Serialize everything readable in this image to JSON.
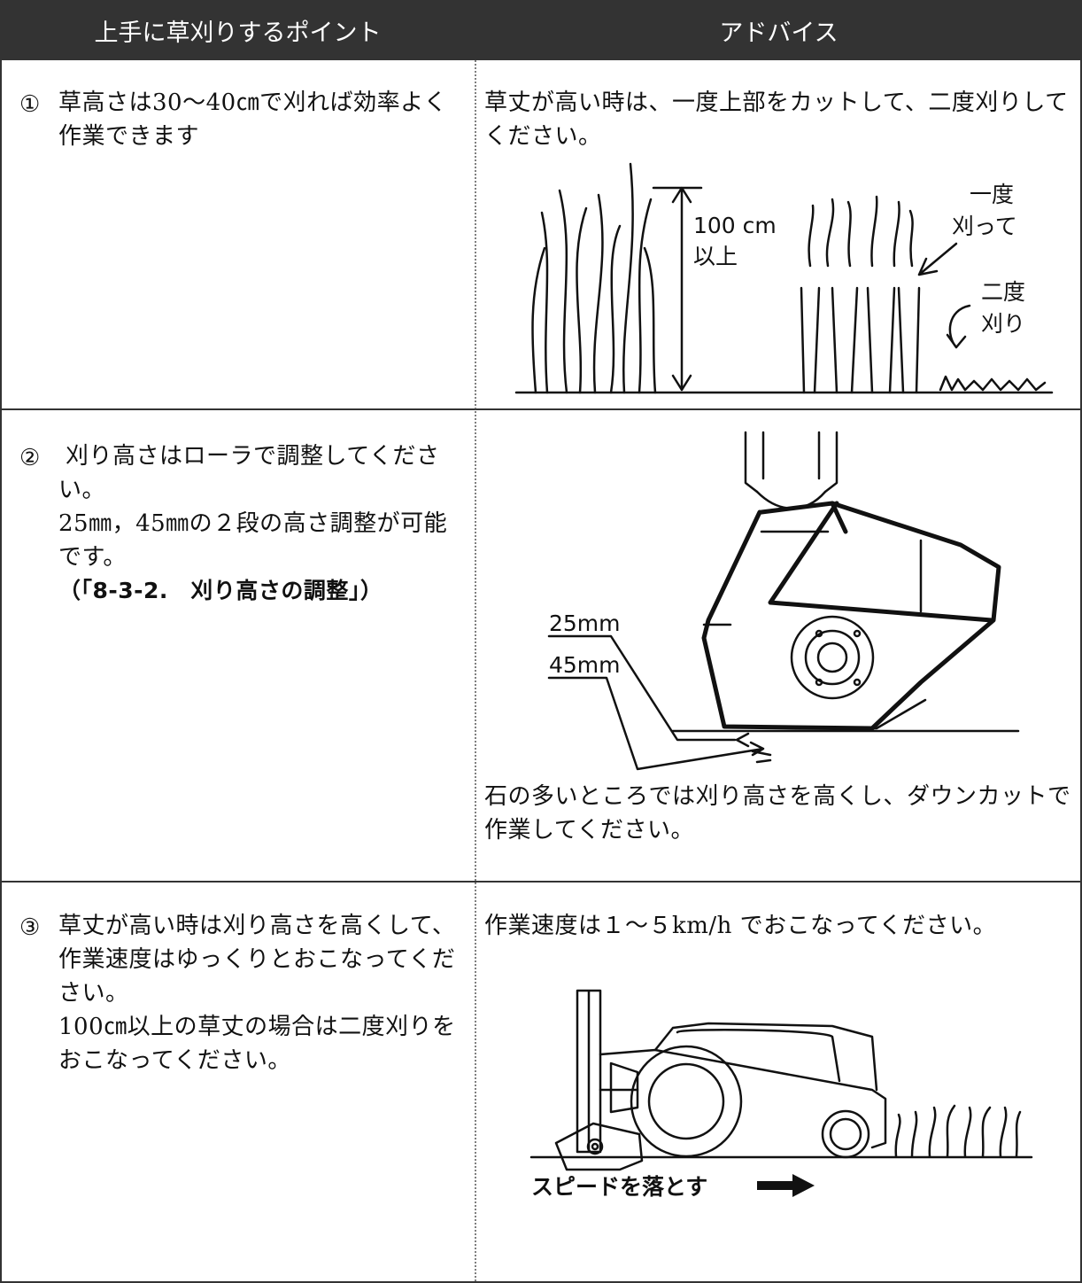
{
  "table": {
    "header": [
      "上手に草刈りするポイント",
      "アドバイス"
    ],
    "rows": [
      {
        "number": "①",
        "point": [
          "草高さは30〜40㎝で刈れば効率よく作業できます"
        ],
        "advice_top": "草丈が高い時は、一度上部をカットして、二度刈りしてください。",
        "figure_labels": [
          "100 cm",
          "以上",
          "一度",
          "刈って",
          "二度",
          "刈り"
        ]
      },
      {
        "number": "②",
        "point": [
          "刈り高さはローラで調整してください。",
          "25㎜，45㎜の２段の高さ調整が可能です。",
          "（「8-3-2.　刈り高さの調整」）"
        ],
        "advice_bottom": "石の多いところでは刈り高さを高くし、ダウンカットで作業してください。",
        "figure_labels": [
          "25mm",
          "45mm"
        ]
      },
      {
        "number": "③",
        "point": [
          "草丈が高い時は刈り高さを高くして、作業速度はゆっくりとおこなってください。",
          "100㎝以上の草丈の場合は二度刈りをおこなってください。"
        ],
        "advice_top": "作業速度は１～５km/h でおこなってください。",
        "figure_labels": [
          "スピードを落とす"
        ]
      }
    ]
  }
}
